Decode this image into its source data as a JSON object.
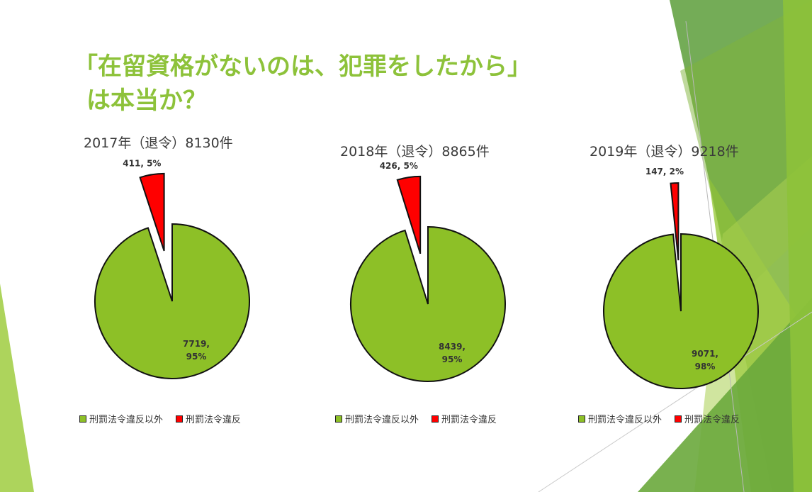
{
  "title": {
    "line1": "「在留資格がないのは、犯罪をしたから」",
    "line2": "は本当か？"
  },
  "colors": {
    "title": "#8dc23a",
    "green_slice": "#8dc027",
    "red_slice": "#ff0000"
  },
  "legend": {
    "items": [
      "刑罰法令違反以外",
      "刑罰法令違反"
    ]
  },
  "chart_data": [
    {
      "type": "pie",
      "title": "2017年（退令）8130件",
      "categories": [
        "刑罰法令違反以外",
        "刑罰法令違反"
      ],
      "values": [
        7719,
        411
      ],
      "labels": [
        "7719,\n95%",
        "411, 5%"
      ]
    },
    {
      "type": "pie",
      "title": "2018年（退令）8865件",
      "categories": [
        "刑罰法令違反以外",
        "刑罰法令違反"
      ],
      "values": [
        8439,
        426
      ],
      "labels": [
        "8439,\n95%",
        "426, 5%"
      ]
    },
    {
      "type": "pie",
      "title": "2019年（退令）9218件",
      "categories": [
        "刑罰法令違反以外",
        "刑罰法令違反"
      ],
      "values": [
        9071,
        147
      ],
      "labels": [
        "9071,\n98%",
        "147, 2%"
      ]
    }
  ]
}
